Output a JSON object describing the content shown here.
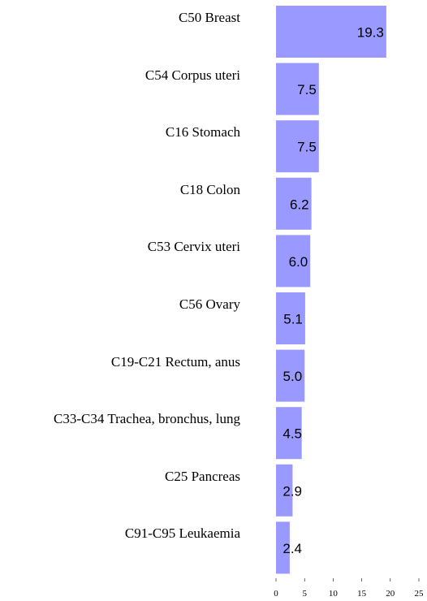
{
  "chart_data": {
    "type": "bar",
    "orientation": "horizontal",
    "categories": [
      "C50 Breast",
      "C54 Corpus uteri",
      "C16 Stomach",
      "C18 Colon",
      "C53 Cervix uteri",
      "C56 Ovary",
      "C19-C21 Rectum, anus",
      "C33-C34 Trachea, bronchus, lung",
      "C25 Pancreas",
      "C91-C95 Leukaemia"
    ],
    "values": [
      19.3,
      7.5,
      7.5,
      6.2,
      6.0,
      5.1,
      5.0,
      4.5,
      2.9,
      2.4
    ],
    "value_labels": [
      "19.3",
      "7.5",
      "7.5",
      "6.2",
      "6.0",
      "5.1",
      "5.0",
      "4.5",
      "2.9",
      "2.4"
    ],
    "color": "#9999ff",
    "xlim": [
      0,
      25
    ],
    "xticks": [
      0,
      5,
      10,
      15,
      20,
      25
    ]
  }
}
